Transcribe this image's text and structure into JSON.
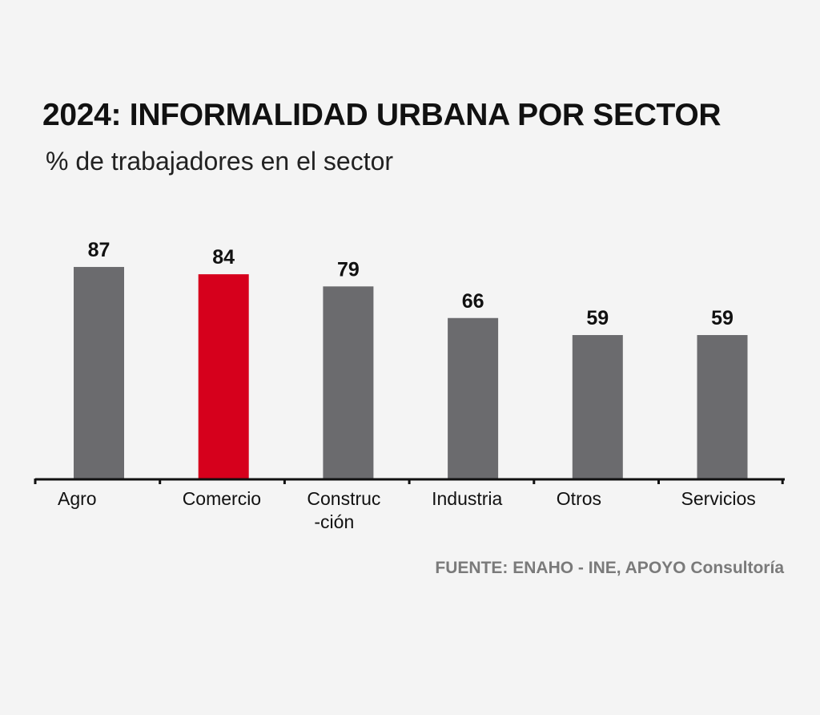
{
  "chart_data": {
    "type": "bar",
    "title": "2024: INFORMALIDAD URBANA POR SECTOR",
    "subtitle": "% de trabajadores en el sector",
    "categories": [
      "Agro",
      "Comercio",
      "Construc\n-ción",
      "Industria",
      "Otros",
      "Servicios"
    ],
    "values": [
      87,
      84,
      79,
      66,
      59,
      59
    ],
    "highlight_index": 1,
    "colors": {
      "default": "#6b6b6e",
      "highlight": "#d6001c",
      "axis": "#111111"
    },
    "xlabel": "",
    "ylabel": "",
    "ylim": [
      0,
      100
    ],
    "grid": false,
    "source": "FUENTE: ENAHO - INE, APOYO Consultoría"
  }
}
